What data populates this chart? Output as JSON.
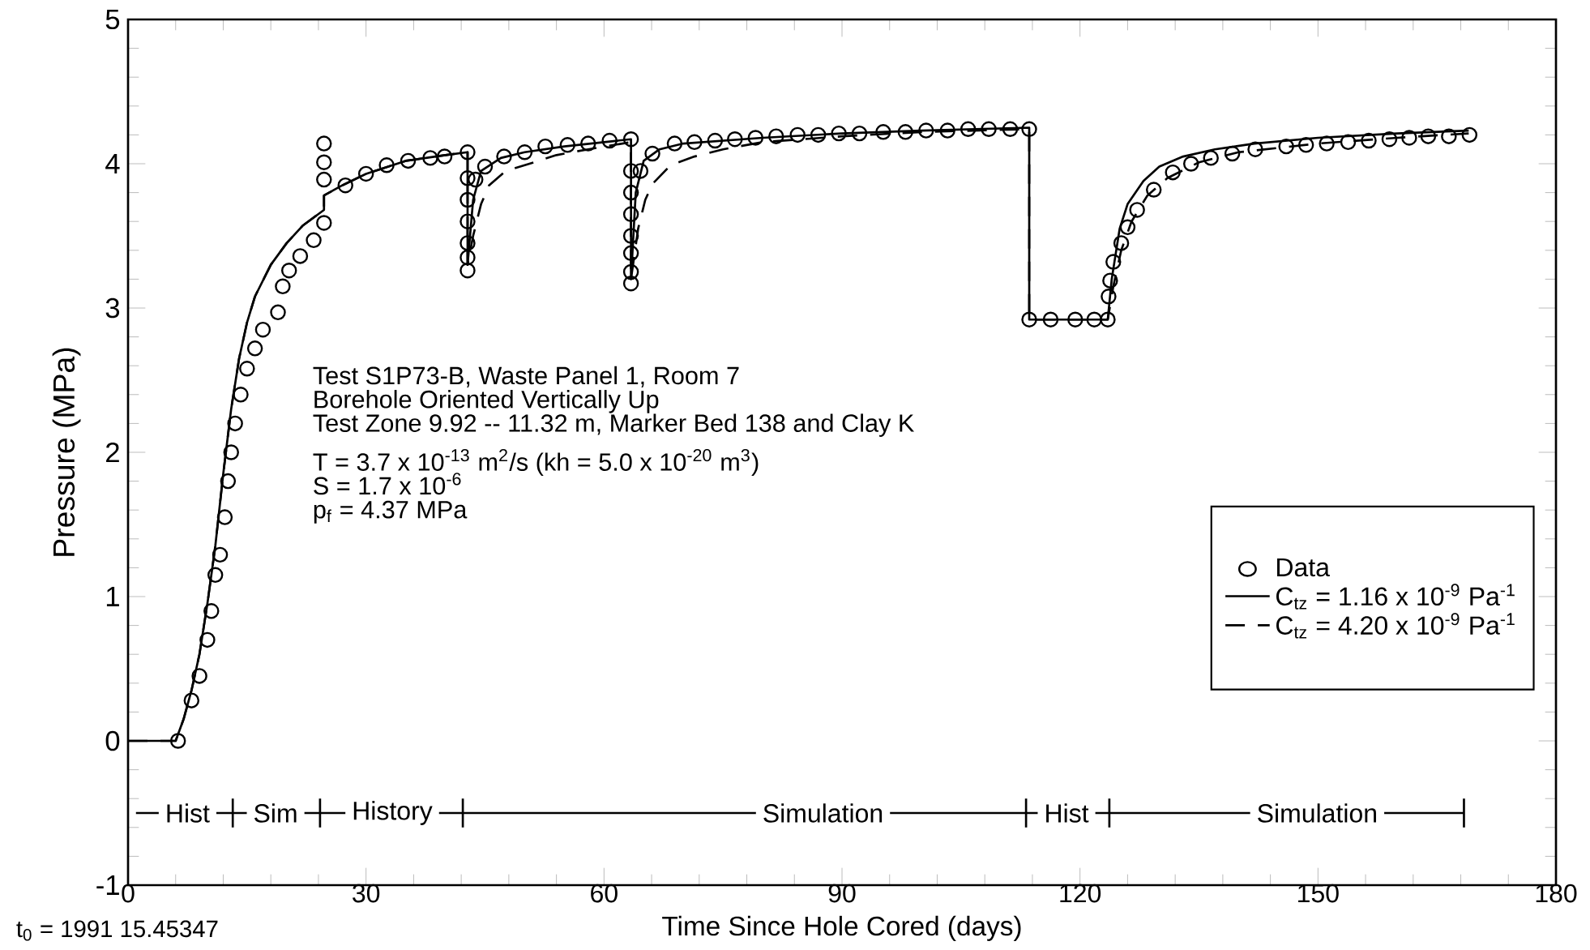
{
  "chart_data": {
    "type": "line",
    "xlabel": "Time Since Hole Cored (days)",
    "ylabel": "Pressure (MPa)",
    "xlim": [
      0,
      180
    ],
    "xticks": [
      0,
      30,
      60,
      90,
      120,
      150,
      180
    ],
    "ylim": [
      -1,
      5
    ],
    "yticks": [
      -1,
      0,
      1,
      2,
      3,
      4,
      5
    ],
    "legend": "bottom right",
    "series": [
      {
        "name": "Data",
        "type": "scatter",
        "marker": "circle",
        "color": "#000000",
        "x": [
          6.3,
          8,
          9,
          10,
          10.5,
          11,
          11.6,
          12.2,
          12.6,
          13,
          13.5,
          14.2,
          15,
          16,
          17,
          18.9,
          19.5,
          20.3,
          21.7,
          23.4,
          24.7,
          24.7,
          24.7,
          24.7,
          27.4,
          30,
          32.6,
          35.3,
          38.1,
          39.9,
          42.8,
          42.8,
          42.8,
          42.8,
          42.8,
          42.8,
          42.8,
          43.8,
          45,
          47.4,
          50,
          52.6,
          55.4,
          58,
          60.7,
          63.4,
          63.4,
          63.4,
          63.4,
          63.4,
          63.4,
          63.4,
          63.4,
          64.6,
          66.1,
          68.9,
          71.4,
          74,
          76.5,
          79.1,
          81.7,
          84.4,
          87,
          89.6,
          92.2,
          95.2,
          98,
          100.6,
          103.3,
          105.9,
          108.5,
          111.2,
          113.6,
          113.6,
          116.3,
          119.4,
          121.8,
          123.5,
          123.6,
          123.8,
          124.2,
          125.2,
          126,
          127.2,
          129.3,
          131.7,
          134,
          136.5,
          139.2,
          142.1,
          146,
          148.5,
          151.1,
          153.8,
          156.4,
          159,
          161.5,
          163.9,
          166.5,
          169.1
        ],
        "values": [
          0,
          0.28,
          0.45,
          0.7,
          0.9,
          1.15,
          1.29,
          1.55,
          1.8,
          2.0,
          2.2,
          2.4,
          2.58,
          2.72,
          2.85,
          2.97,
          3.15,
          3.26,
          3.36,
          3.47,
          3.59,
          3.89,
          4.01,
          4.14,
          3.85,
          3.93,
          3.99,
          4.02,
          4.04,
          4.05,
          4.08,
          3.9,
          3.75,
          3.6,
          3.45,
          3.35,
          3.26,
          3.89,
          3.98,
          4.05,
          4.08,
          4.12,
          4.13,
          4.14,
          4.16,
          4.17,
          3.95,
          3.8,
          3.65,
          3.5,
          3.38,
          3.25,
          3.17,
          3.95,
          4.07,
          4.14,
          4.15,
          4.16,
          4.17,
          4.18,
          4.19,
          4.2,
          4.2,
          4.21,
          4.21,
          4.22,
          4.22,
          4.23,
          4.23,
          4.24,
          4.24,
          4.24,
          4.24,
          2.92,
          2.92,
          2.92,
          2.92,
          2.92,
          3.08,
          3.19,
          3.32,
          3.45,
          3.56,
          3.68,
          3.82,
          3.94,
          4.0,
          4.04,
          4.07,
          4.1,
          4.12,
          4.13,
          4.14,
          4.15,
          4.16,
          4.17,
          4.18,
          4.19,
          4.19,
          4.2
        ]
      },
      {
        "name": "C$_{tz}$ = 1.16 x 10$^{-9}$ Pa$^{-1}$",
        "line_style": "solid",
        "color": "#000000",
        "x": [
          0,
          6,
          7,
          8,
          9,
          10,
          11,
          12,
          13,
          14,
          15,
          16,
          18,
          20,
          22,
          24.7,
          24.7,
          27,
          30,
          35,
          40,
          42.8,
          42.8,
          43.5,
          44.5,
          47,
          50,
          55,
          60,
          63.4,
          63.4,
          64,
          65,
          67,
          70,
          80,
          90,
          100,
          113.6,
          113.6,
          123.5,
          124,
          125,
          126,
          128,
          130,
          133,
          137,
          142,
          150,
          160,
          169
        ],
        "values": [
          0,
          0,
          0.15,
          0.35,
          0.6,
          0.95,
          1.35,
          1.85,
          2.3,
          2.65,
          2.9,
          3.08,
          3.3,
          3.45,
          3.57,
          3.68,
          3.78,
          3.85,
          3.93,
          4.02,
          4.06,
          4.08,
          3.3,
          3.75,
          3.95,
          4.04,
          4.08,
          4.12,
          4.15,
          4.17,
          3.2,
          3.8,
          4.02,
          4.1,
          4.14,
          4.18,
          4.21,
          4.23,
          4.25,
          2.92,
          2.92,
          3.2,
          3.55,
          3.72,
          3.88,
          3.98,
          4.05,
          4.1,
          4.14,
          4.18,
          4.21,
          4.23
        ]
      },
      {
        "name": "C$_{tz}$ = 4.20 x 10$^{-9}$ Pa$^{-1}$",
        "line_style": "dashed",
        "color": "#000000",
        "x": [
          0,
          6,
          7,
          8,
          9,
          10,
          11,
          12,
          13,
          14,
          15,
          16,
          18,
          20,
          22,
          24.7,
          24.7,
          27,
          30,
          35,
          40,
          42.8,
          42.8,
          43.5,
          44.5,
          45.5,
          47.6,
          50.6,
          54,
          58,
          63.4,
          63.4,
          64.3,
          65.2,
          66.1,
          68.4,
          71.4,
          75,
          80,
          90,
          100,
          113.6,
          113.6,
          123.5,
          124.2,
          125.2,
          126.5,
          128.5,
          131,
          135,
          140,
          150,
          160,
          169
        ],
        "values": [
          0,
          0,
          0.15,
          0.35,
          0.6,
          0.95,
          1.35,
          1.85,
          2.3,
          2.65,
          2.9,
          3.08,
          3.3,
          3.45,
          3.57,
          3.68,
          3.78,
          3.85,
          3.93,
          4.02,
          4.06,
          4.08,
          3.3,
          3.5,
          3.72,
          3.85,
          3.95,
          4.0,
          4.06,
          4.1,
          4.15,
          3.2,
          3.55,
          3.75,
          3.86,
          3.99,
          4.05,
          4.1,
          4.15,
          4.19,
          4.22,
          4.24,
          2.92,
          2.92,
          3.15,
          3.4,
          3.6,
          3.78,
          3.9,
          4.01,
          4.08,
          4.14,
          4.18,
          4.21
        ]
      },
      {
        "line_style": "solid",
        "color": "#000000",
        "x": [
          1,
          13.2,
          24.2,
          42.2,
          113.2,
          123.7,
          168.4
        ],
        "values": [
          -0.5,
          -0.5,
          -0.5,
          -0.5,
          -0.5,
          -0.5,
          -0.5
        ],
        "errors": [
          null,
          0.1,
          0.1,
          0.1,
          0.1,
          0.1,
          0.1
        ]
      }
    ],
    "annotations": [
      {
        "text": "Hist",
        "x": 7.5,
        "y": -0.5
      },
      {
        "text": "Sim",
        "x": 18.6,
        "y": -0.5
      },
      {
        "text": "History",
        "x": 33.3,
        "y": -0.5
      },
      {
        "text": "Simulation",
        "x": 87.6,
        "y": -0.5
      },
      {
        "text": "Hist",
        "x": 118.3,
        "y": -0.5
      },
      {
        "text": "Simulation",
        "x": 149.9,
        "y": -0.5
      },
      "Test S1P73-B, Waste Panel 1, Room 7",
      "Borehole Oriented Vertically Up",
      "Test Zone 9.92 -- 11.32 m, Marker Bed 138 and Clay K",
      "T  =  3.7 x 10$^{-13}$ m$^{2}$/s (kh = 5.0 x 10$^{-20}$ m$^{3}$)",
      "S  =  1.7 x 10$^{-6}$",
      "p$_{f}$  =  4.37 MPa",
      "t$_{0}$ = 1991 15.45347"
    ]
  }
}
